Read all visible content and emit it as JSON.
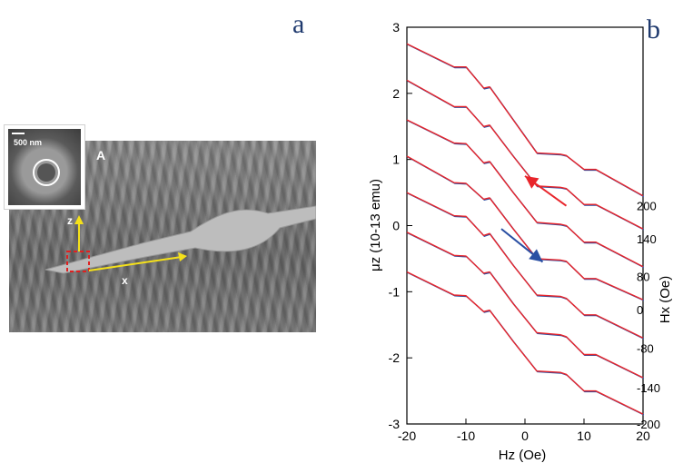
{
  "panel_a": {
    "letter": "a",
    "inset_label": "500 nm",
    "image_label": "A",
    "axis_z_label": "z",
    "axis_x_label": "x"
  },
  "panel_b": {
    "letter": "b"
  },
  "colors": {
    "panel_letter": "#1f3a6e",
    "series_red": "#e8252b",
    "series_blue": "#2a4fa3",
    "yellow_axes": "#f5e11a",
    "dashed_box": "#e02020"
  },
  "chart_data": {
    "type": "line",
    "xlabel": "Hz (Oe)",
    "ylabel": "μz (10-13 emu)",
    "right_axis_label": "Hx (Oe)",
    "xlim": [
      -20,
      20
    ],
    "ylim": [
      -3,
      3
    ],
    "x_ticks": [
      "-20",
      "-10",
      "0",
      "10",
      "20"
    ],
    "y_ticks": [
      "3",
      "2",
      "1",
      "0",
      "-1",
      "-2",
      "-3"
    ],
    "curve_x": [
      -20,
      -12,
      -10,
      -7,
      -6,
      -2,
      2,
      6,
      7,
      10,
      12,
      20
    ],
    "series": [
      {
        "name": "200",
        "y": [
          2.75,
          2.4,
          2.4,
          2.08,
          2.1,
          1.6,
          1.1,
          1.08,
          1.06,
          0.85,
          0.85,
          0.45
        ]
      },
      {
        "name": "140",
        "y": [
          2.2,
          1.8,
          1.8,
          1.5,
          1.52,
          1.05,
          0.6,
          0.58,
          0.56,
          0.32,
          0.32,
          -0.05
        ]
      },
      {
        "name": "80",
        "y": [
          1.6,
          1.25,
          1.24,
          0.95,
          0.97,
          0.5,
          0.05,
          0.02,
          0.0,
          -0.25,
          -0.25,
          -0.62
        ]
      },
      {
        "name": "0",
        "y": [
          1.05,
          0.65,
          0.64,
          0.4,
          0.42,
          -0.05,
          -0.5,
          -0.52,
          -0.54,
          -0.8,
          -0.8,
          -1.12
        ]
      },
      {
        "name": "-80",
        "y": [
          0.5,
          0.15,
          0.14,
          -0.15,
          -0.12,
          -0.6,
          -1.05,
          -1.07,
          -1.1,
          -1.35,
          -1.35,
          -1.7
        ]
      },
      {
        "name": "-140",
        "y": [
          -0.1,
          -0.45,
          -0.46,
          -0.72,
          -0.7,
          -1.18,
          -1.62,
          -1.65,
          -1.68,
          -1.95,
          -1.95,
          -2.3
        ]
      },
      {
        "name": "-200",
        "y": [
          -0.7,
          -1.05,
          -1.06,
          -1.3,
          -1.28,
          -1.75,
          -2.2,
          -2.22,
          -2.25,
          -2.5,
          -2.5,
          -2.85
        ]
      }
    ],
    "arrows": [
      {
        "color": "red",
        "from": [
          7,
          0.3
        ],
        "to": [
          0,
          0.75
        ]
      },
      {
        "color": "blue",
        "from": [
          -4,
          -0.05
        ],
        "to": [
          3,
          -0.55
        ]
      }
    ]
  }
}
